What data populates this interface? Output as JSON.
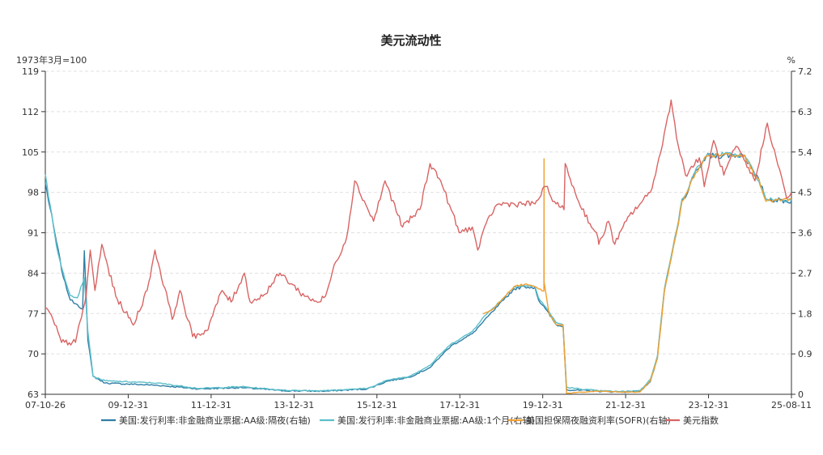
{
  "chart_data": {
    "type": "line",
    "title": "美元流动性",
    "left_unit": "1973年3月=100",
    "right_unit": "%",
    "left_axis": {
      "min": 63,
      "max": 119,
      "ticks": [
        "119",
        "112",
        "105",
        "98",
        "91",
        "84",
        "77",
        "70",
        "63"
      ]
    },
    "right_axis": {
      "min": 0,
      "max": 7.2,
      "ticks": [
        "7.2",
        "6.3",
        "5.4",
        "4.5",
        "3.6",
        "2.7",
        "1.8",
        "0.9",
        "0"
      ]
    },
    "x_ticks": [
      "07-10-26",
      "09-12-31",
      "11-12-31",
      "13-12-31",
      "15-12-31",
      "17-12-31",
      "19-12-31",
      "21-12-31",
      "23-12-31",
      "25-08-11"
    ],
    "grid": true,
    "legend_position": "bottom",
    "series": [
      {
        "name": "美国:发行利率:非金融商业票据:AA级:隔夜(右轴)",
        "axis": "right",
        "color": "#2f7ea6",
        "points": [
          [
            "2007-10-26",
            4.7
          ],
          [
            "2008-01-31",
            3.4
          ],
          [
            "2008-03-31",
            2.6
          ],
          [
            "2008-05-31",
            2.1
          ],
          [
            "2008-07-31",
            2.0
          ],
          [
            "2008-09-15",
            1.9
          ],
          [
            "2008-09-30",
            3.2
          ],
          [
            "2008-10-31",
            1.2
          ],
          [
            "2008-12-15",
            0.4
          ],
          [
            "2009-03-31",
            0.25
          ],
          [
            "2010-06-30",
            0.2
          ],
          [
            "2011-06-30",
            0.12
          ],
          [
            "2012-06-30",
            0.15
          ],
          [
            "2013-06-30",
            0.08
          ],
          [
            "2014-06-30",
            0.07
          ],
          [
            "2015-06-30",
            0.12
          ],
          [
            "2015-12-31",
            0.3
          ],
          [
            "2016-06-30",
            0.38
          ],
          [
            "2016-12-31",
            0.6
          ],
          [
            "2017-03-31",
            0.85
          ],
          [
            "2017-06-30",
            1.08
          ],
          [
            "2017-12-31",
            1.35
          ],
          [
            "2018-03-31",
            1.6
          ],
          [
            "2018-06-30",
            1.85
          ],
          [
            "2018-09-30",
            2.1
          ],
          [
            "2018-12-31",
            2.35
          ],
          [
            "2019-03-31",
            2.4
          ],
          [
            "2019-06-30",
            2.38
          ],
          [
            "2019-07-31",
            2.1
          ],
          [
            "2019-09-30",
            1.9
          ],
          [
            "2019-12-31",
            1.55
          ],
          [
            "2020-03-01",
            1.5
          ],
          [
            "2020-03-31",
            0.1
          ],
          [
            "2020-12-31",
            0.07
          ],
          [
            "2021-06-30",
            0.05
          ],
          [
            "2021-12-31",
            0.07
          ],
          [
            "2022-03-31",
            0.28
          ],
          [
            "2022-05-31",
            0.8
          ],
          [
            "2022-06-30",
            1.55
          ],
          [
            "2022-07-31",
            2.3
          ],
          [
            "2022-09-30",
            3.05
          ],
          [
            "2022-11-30",
            3.8
          ],
          [
            "2022-12-31",
            4.3
          ],
          [
            "2023-02-28",
            4.55
          ],
          [
            "2023-03-31",
            4.8
          ],
          [
            "2023-05-31",
            5.05
          ],
          [
            "2023-07-31",
            5.3
          ],
          [
            "2023-12-31",
            5.33
          ],
          [
            "2024-06-30",
            5.33
          ],
          [
            "2024-09-30",
            4.85
          ],
          [
            "2024-10-31",
            4.8
          ],
          [
            "2024-12-31",
            4.35
          ],
          [
            "2025-08-11",
            4.3
          ]
        ]
      },
      {
        "name": "美国:发行利率:非金融商业票据:AA级:1个月(右轴)",
        "axis": "right",
        "color": "#5bbfc9",
        "points": [
          [
            "2007-10-26",
            4.9
          ],
          [
            "2008-01-31",
            3.3
          ],
          [
            "2008-03-31",
            2.7
          ],
          [
            "2008-05-31",
            2.2
          ],
          [
            "2008-07-31",
            2.15
          ],
          [
            "2008-09-30",
            2.6
          ],
          [
            "2008-10-31",
            1.4
          ],
          [
            "2008-12-15",
            0.4
          ],
          [
            "2009-03-31",
            0.3
          ],
          [
            "2010-06-30",
            0.25
          ],
          [
            "2011-06-30",
            0.13
          ],
          [
            "2012-06-30",
            0.17
          ],
          [
            "2013-06-30",
            0.09
          ],
          [
            "2014-06-30",
            0.08
          ],
          [
            "2015-06-30",
            0.13
          ],
          [
            "2015-12-31",
            0.32
          ],
          [
            "2016-06-30",
            0.4
          ],
          [
            "2016-12-31",
            0.65
          ],
          [
            "2017-03-31",
            0.9
          ],
          [
            "2017-06-30",
            1.12
          ],
          [
            "2017-12-31",
            1.4
          ],
          [
            "2018-03-31",
            1.7
          ],
          [
            "2018-06-30",
            1.92
          ],
          [
            "2018-09-30",
            2.15
          ],
          [
            "2018-12-31",
            2.4
          ],
          [
            "2019-03-31",
            2.42
          ],
          [
            "2019-06-30",
            2.4
          ],
          [
            "2019-07-31",
            2.15
          ],
          [
            "2019-09-30",
            1.95
          ],
          [
            "2019-12-31",
            1.6
          ],
          [
            "2020-03-01",
            1.55
          ],
          [
            "2020-03-31",
            0.15
          ],
          [
            "2020-12-31",
            0.08
          ],
          [
            "2021-06-30",
            0.06
          ],
          [
            "2021-12-31",
            0.08
          ],
          [
            "2022-03-31",
            0.33
          ],
          [
            "2022-05-31",
            0.85
          ],
          [
            "2022-06-30",
            1.6
          ],
          [
            "2022-07-31",
            2.35
          ],
          [
            "2022-09-30",
            3.1
          ],
          [
            "2022-11-30",
            3.85
          ],
          [
            "2022-12-31",
            4.35
          ],
          [
            "2023-02-28",
            4.6
          ],
          [
            "2023-03-31",
            4.85
          ],
          [
            "2023-05-31",
            5.1
          ],
          [
            "2023-07-31",
            5.32
          ],
          [
            "2023-12-31",
            5.35
          ],
          [
            "2024-06-30",
            5.32
          ],
          [
            "2024-09-30",
            4.9
          ],
          [
            "2024-10-31",
            4.75
          ],
          [
            "2024-12-31",
            4.35
          ],
          [
            "2025-08-11",
            4.32
          ]
        ]
      },
      {
        "name": "美国担保隔夜融资利率(SOFR)(右轴)",
        "axis": "right",
        "color": "#f0a030",
        "points": [
          [
            "2018-04-03",
            1.8
          ],
          [
            "2018-06-30",
            1.9
          ],
          [
            "2018-09-30",
            2.15
          ],
          [
            "2018-12-31",
            2.4
          ],
          [
            "2019-03-31",
            2.45
          ],
          [
            "2019-06-30",
            2.4
          ],
          [
            "2019-07-31",
            2.35
          ],
          [
            "2019-09-16",
            2.3
          ],
          [
            "2019-09-17",
            5.25
          ],
          [
            "2019-09-18",
            2.5
          ],
          [
            "2019-10-31",
            1.8
          ],
          [
            "2019-12-31",
            1.55
          ],
          [
            "2020-03-01",
            1.55
          ],
          [
            "2020-03-31",
            0.02
          ],
          [
            "2020-12-31",
            0.07
          ],
          [
            "2021-06-30",
            0.05
          ],
          [
            "2021-12-31",
            0.05
          ],
          [
            "2022-03-31",
            0.3
          ],
          [
            "2022-05-31",
            0.8
          ],
          [
            "2022-06-30",
            1.5
          ],
          [
            "2022-07-31",
            2.3
          ],
          [
            "2022-09-30",
            3.05
          ],
          [
            "2022-11-30",
            3.8
          ],
          [
            "2022-12-31",
            4.3
          ],
          [
            "2023-02-28",
            4.55
          ],
          [
            "2023-03-31",
            4.8
          ],
          [
            "2023-05-31",
            5.05
          ],
          [
            "2023-07-31",
            5.31
          ],
          [
            "2023-12-31",
            5.35
          ],
          [
            "2024-06-30",
            5.33
          ],
          [
            "2024-09-30",
            4.85
          ],
          [
            "2024-10-31",
            4.8
          ],
          [
            "2024-12-31",
            4.3
          ],
          [
            "2025-08-11",
            4.35
          ]
        ]
      },
      {
        "name": "美元指数",
        "axis": "left",
        "color": "#d96464",
        "points": [
          [
            "2007-10-26",
            78
          ],
          [
            "2007-12-31",
            76
          ],
          [
            "2008-03-15",
            72
          ],
          [
            "2008-07-15",
            72
          ],
          [
            "2008-10-15",
            80
          ],
          [
            "2008-11-20",
            88
          ],
          [
            "2008-12-31",
            81
          ],
          [
            "2009-03-01",
            89
          ],
          [
            "2009-06-30",
            80
          ],
          [
            "2009-11-30",
            75
          ],
          [
            "2010-03-31",
            81
          ],
          [
            "2010-06-07",
            88
          ],
          [
            "2010-09-30",
            79
          ],
          [
            "2010-11-04",
            76
          ],
          [
            "2011-01-10",
            81
          ],
          [
            "2011-05-01",
            73
          ],
          [
            "2011-08-31",
            74
          ],
          [
            "2012-01-13",
            81
          ],
          [
            "2012-03-31",
            79
          ],
          [
            "2012-07-24",
            84
          ],
          [
            "2012-09-14",
            79
          ],
          [
            "2012-12-31",
            80
          ],
          [
            "2013-05-31",
            84
          ],
          [
            "2013-12-31",
            80
          ],
          [
            "2014-05-08",
            79
          ],
          [
            "2014-07-01",
            80
          ],
          [
            "2014-09-30",
            86
          ],
          [
            "2014-12-31",
            90
          ],
          [
            "2015-03-13",
            100
          ],
          [
            "2015-08-24",
            93
          ],
          [
            "2015-12-02",
            100
          ],
          [
            "2016-05-03",
            92
          ],
          [
            "2016-09-30",
            95
          ],
          [
            "2016-12-28",
            103
          ],
          [
            "2017-03-31",
            100
          ],
          [
            "2017-06-30",
            95
          ],
          [
            "2017-09-08",
            91
          ],
          [
            "2017-12-31",
            92
          ],
          [
            "2018-02-16",
            88
          ],
          [
            "2018-05-31",
            94
          ],
          [
            "2018-08-15",
            96
          ],
          [
            "2018-12-31",
            96
          ],
          [
            "2019-06-30",
            96
          ],
          [
            "2019-10-01",
            99
          ],
          [
            "2019-12-31",
            96
          ],
          [
            "2020-03-09",
            95
          ],
          [
            "2020-03-19",
            103
          ],
          [
            "2020-06-30",
            97
          ],
          [
            "2020-12-31",
            90
          ],
          [
            "2021-01-06",
            89
          ],
          [
            "2021-03-31",
            93
          ],
          [
            "2021-05-25",
            89
          ],
          [
            "2021-09-30",
            94
          ],
          [
            "2021-12-31",
            96
          ],
          [
            "2022-03-31",
            98
          ],
          [
            "2022-06-30",
            105
          ],
          [
            "2022-09-28",
            114
          ],
          [
            "2022-11-30",
            106
          ],
          [
            "2023-01-31",
            101
          ],
          [
            "2023-05-31",
            104
          ],
          [
            "2023-07-14",
            99
          ],
          [
            "2023-10-03",
            107
          ],
          [
            "2023-12-31",
            101
          ],
          [
            "2024-04-16",
            106
          ],
          [
            "2024-09-27",
            100
          ],
          [
            "2025-01-13",
            110
          ],
          [
            "2025-03-31",
            104
          ],
          [
            "2025-06-30",
            97
          ],
          [
            "2025-08-11",
            98
          ]
        ]
      }
    ]
  }
}
